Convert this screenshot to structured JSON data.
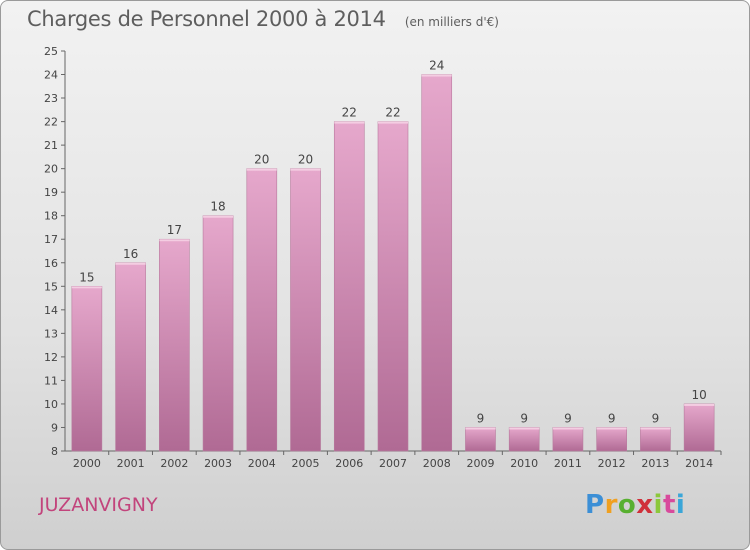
{
  "chart_data": {
    "type": "bar",
    "title": "Charges de Personnel 2000 à 2014",
    "subtitle": "(en milliers d'€)",
    "categories": [
      "2000",
      "2001",
      "2002",
      "2003",
      "2004",
      "2005",
      "2006",
      "2007",
      "2008",
      "2009",
      "2010",
      "2011",
      "2012",
      "2013",
      "2014"
    ],
    "values": [
      15,
      16,
      17,
      18,
      20,
      20,
      22,
      22,
      24,
      9,
      9,
      9,
      9,
      9,
      10
    ],
    "ylim": [
      8,
      25
    ],
    "yticks": [
      8,
      9,
      10,
      11,
      12,
      13,
      14,
      15,
      16,
      17,
      18,
      19,
      20,
      21,
      22,
      23,
      24,
      25
    ],
    "grid": false,
    "bar_color": "#d98cb8"
  },
  "footer": {
    "place": "JUZANVIGNY"
  },
  "logo": {
    "letters": [
      "P",
      "r",
      "o",
      "x",
      "i",
      "t",
      "i"
    ],
    "colors": [
      "#3c8fd6",
      "#f0a020",
      "#58b030",
      "#d0303a",
      "#8cc83c",
      "#d84a9c",
      "#3aa6d8"
    ]
  }
}
